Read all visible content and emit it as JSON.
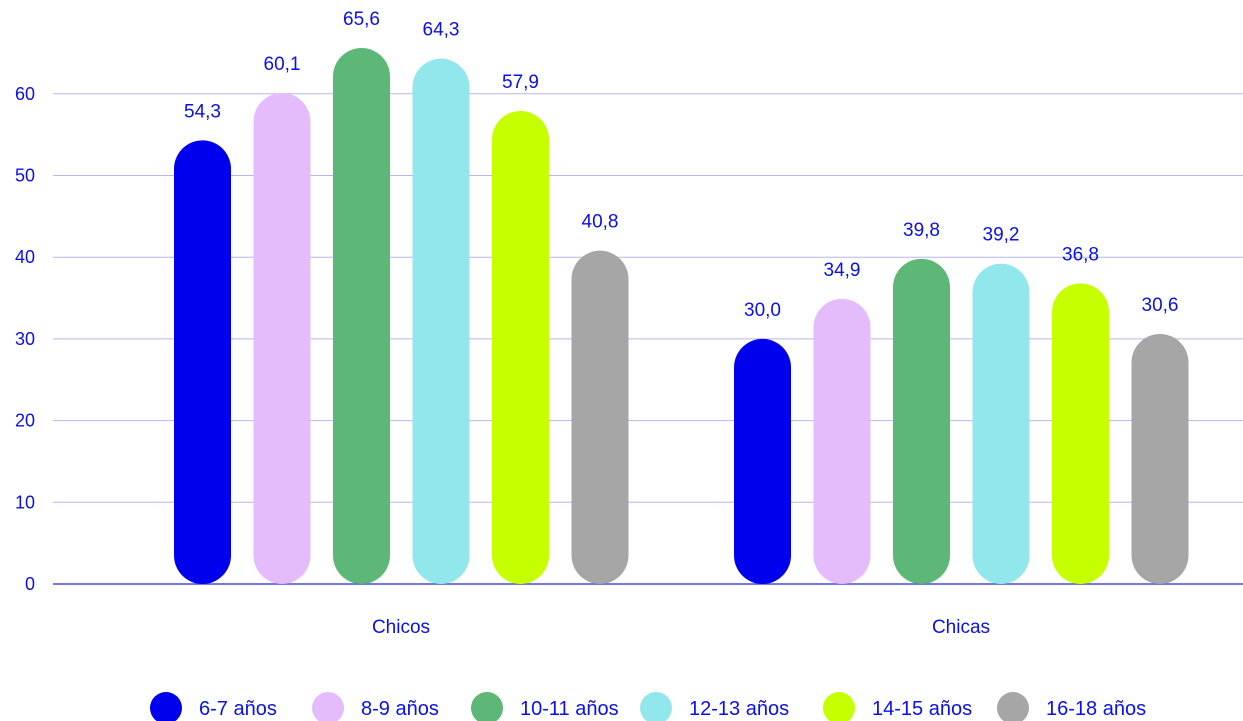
{
  "chart_data": {
    "type": "bar",
    "categories": [
      "Chicos",
      "Chicas"
    ],
    "series": [
      {
        "name": "6-7 años",
        "color": "#0000ee",
        "values": [
          54.3,
          30.0
        ],
        "labels": [
          "54,3",
          "30,0"
        ]
      },
      {
        "name": "8-9 años",
        "color": "#e5bcfb",
        "values": [
          60.1,
          34.9
        ],
        "labels": [
          "60,1",
          "34,9"
        ]
      },
      {
        "name": "10-11 años",
        "color": "#5db777",
        "values": [
          65.6,
          39.8
        ],
        "labels": [
          "65,6",
          "39,8"
        ]
      },
      {
        "name": "12-13 años",
        "color": "#92e7ed",
        "values": [
          64.3,
          39.2
        ],
        "labels": [
          "64,3",
          "39,2"
        ]
      },
      {
        "name": "14-15 años",
        "color": "#c5ff00",
        "values": [
          57.9,
          36.8
        ],
        "labels": [
          "57,9",
          "36,8"
        ]
      },
      {
        "name": "16-18 años",
        "color": "#a6a6a6",
        "values": [
          40.8,
          30.6
        ],
        "labels": [
          "40,8",
          "30,6"
        ]
      }
    ],
    "y_ticks": [
      0,
      10,
      20,
      30,
      40,
      50,
      60
    ],
    "ylim": [
      0,
      70
    ],
    "title": "",
    "xlabel": "",
    "ylabel": "",
    "grid": true,
    "legend_position": "bottom",
    "colors": {
      "text": "#0a0ff0",
      "grid": "#b7b7ee",
      "axis": "#4b4bd8"
    }
  }
}
